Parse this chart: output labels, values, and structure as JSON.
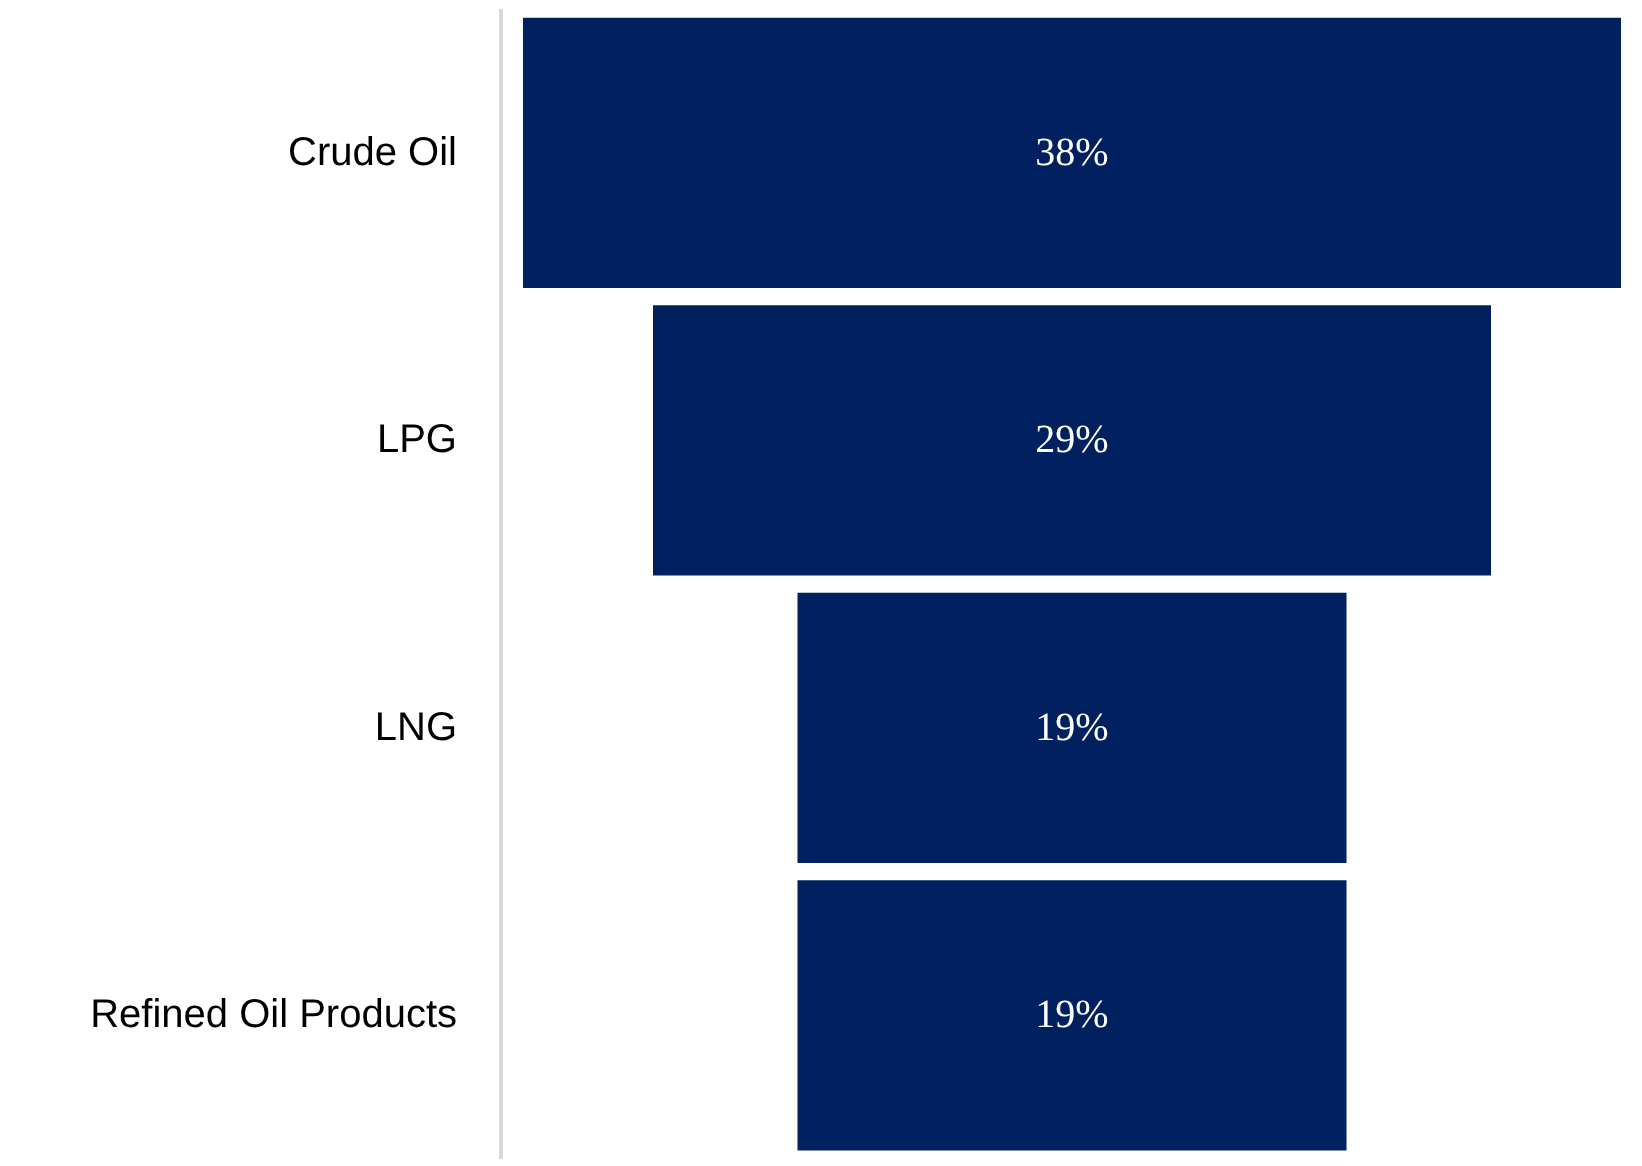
{
  "chart_data": {
    "type": "other",
    "categories": [
      "Crude Oil",
      "LPG",
      "LNG",
      "Refined Oil Products"
    ],
    "values": [
      38,
      29,
      19,
      19
    ],
    "value_labels": [
      "38%",
      "29%",
      "19%",
      "19%"
    ],
    "color": "#002060"
  }
}
